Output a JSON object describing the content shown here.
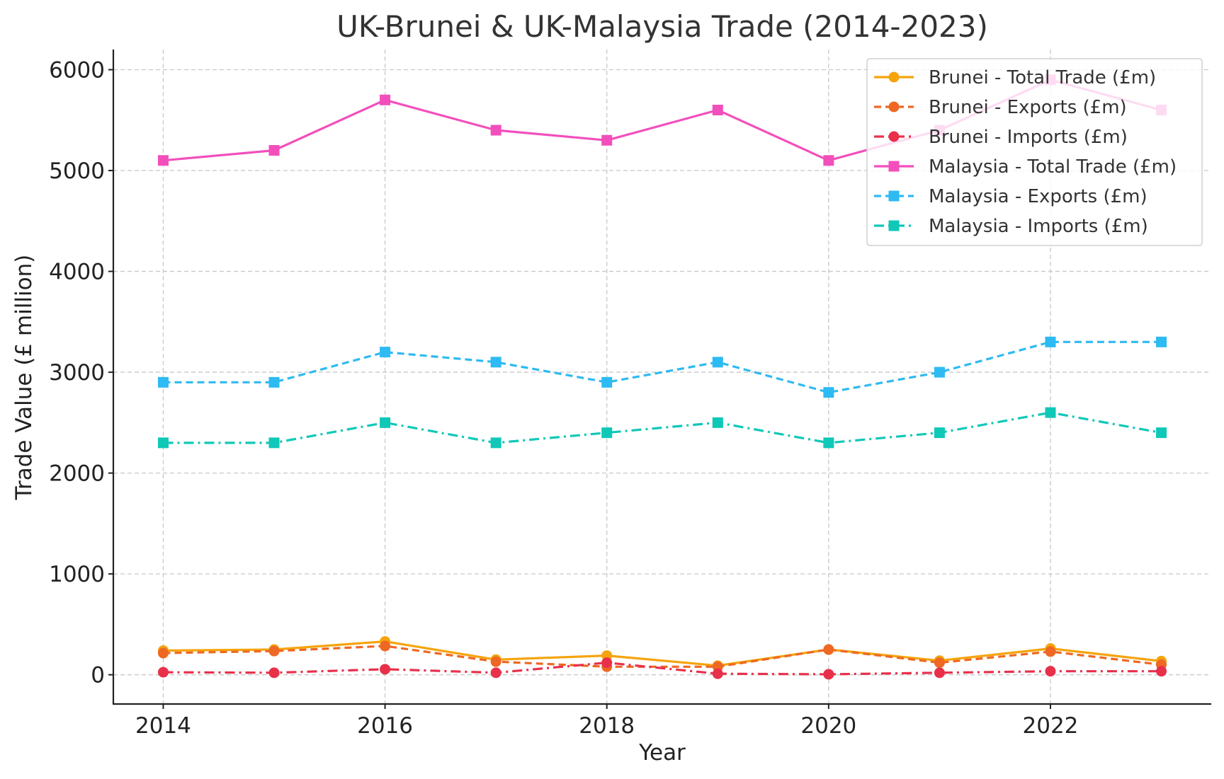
{
  "chart_data": {
    "type": "line",
    "title": "UK-Brunei & UK-Malaysia Trade (2014-2023)",
    "xlabel": "Year",
    "ylabel": "Trade Value (£ million)",
    "x": [
      2014,
      2015,
      2016,
      2017,
      2018,
      2019,
      2020,
      2021,
      2022,
      2023
    ],
    "xlim": [
      2013.55,
      2023.45
    ],
    "ylim": [
      -290,
      6200
    ],
    "x_ticks": [
      2014,
      2016,
      2018,
      2020,
      2022
    ],
    "y_ticks": [
      0,
      1000,
      2000,
      3000,
      4000,
      5000,
      6000
    ],
    "grid": true,
    "legend_position": "top-right",
    "series": [
      {
        "name": "Brunei - Total Trade (£m)",
        "values": [
          240,
          250,
          330,
          150,
          190,
          90,
          250,
          140,
          260,
          135
        ],
        "color": "#f5a40c",
        "line_style": "solid",
        "marker": "circle"
      },
      {
        "name": "Brunei - Exports (£m)",
        "values": [
          215,
          235,
          285,
          130,
          80,
          80,
          250,
          120,
          230,
          100
        ],
        "color": "#ee6823",
        "line_style": "dashed",
        "marker": "circle"
      },
      {
        "name": "Brunei - Imports (£m)",
        "values": [
          25,
          20,
          55,
          20,
          120,
          10,
          5,
          20,
          35,
          35
        ],
        "color": "#e8304b",
        "line_style": "dashdot",
        "marker": "circle"
      },
      {
        "name": "Malaysia - Total Trade (£m)",
        "values": [
          5100,
          5200,
          5700,
          5400,
          5300,
          5600,
          5100,
          5400,
          5900,
          5600
        ],
        "color": "#f24fbc",
        "line_style": "solid",
        "marker": "square"
      },
      {
        "name": "Malaysia - Exports (£m)",
        "values": [
          2900,
          2900,
          3200,
          3100,
          2900,
          3100,
          2800,
          3000,
          3300,
          3300
        ],
        "color": "#2ebaf2",
        "line_style": "dashed",
        "marker": "square"
      },
      {
        "name": "Malaysia - Imports (£m)",
        "values": [
          2300,
          2300,
          2500,
          2300,
          2400,
          2500,
          2300,
          2400,
          2600,
          2400
        ],
        "color": "#0fc8b8",
        "line_style": "dashdot",
        "marker": "square"
      }
    ]
  }
}
